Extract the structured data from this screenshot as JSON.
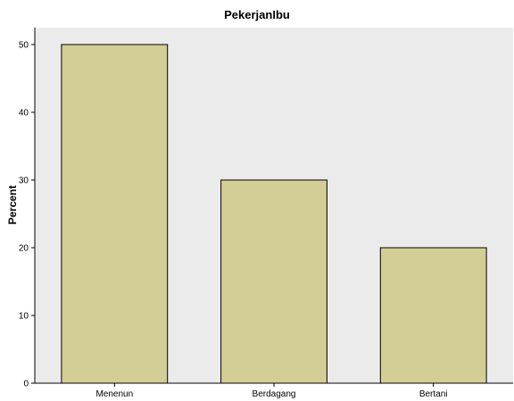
{
  "chart_data": {
    "type": "bar",
    "title": "PekerjanIbu",
    "xlabel": "",
    "ylabel": "Percent",
    "categories": [
      "Menenun",
      "Berdagang",
      "Bertani"
    ],
    "values": [
      50,
      30,
      20
    ],
    "ylim": [
      0,
      52.5
    ],
    "yticks": [
      0,
      10,
      20,
      30,
      40,
      50
    ],
    "grid": false,
    "colors": {
      "bar_fill": "#d3ce96",
      "bar_stroke": "#000000",
      "plot_background": "#ebebeb"
    }
  }
}
